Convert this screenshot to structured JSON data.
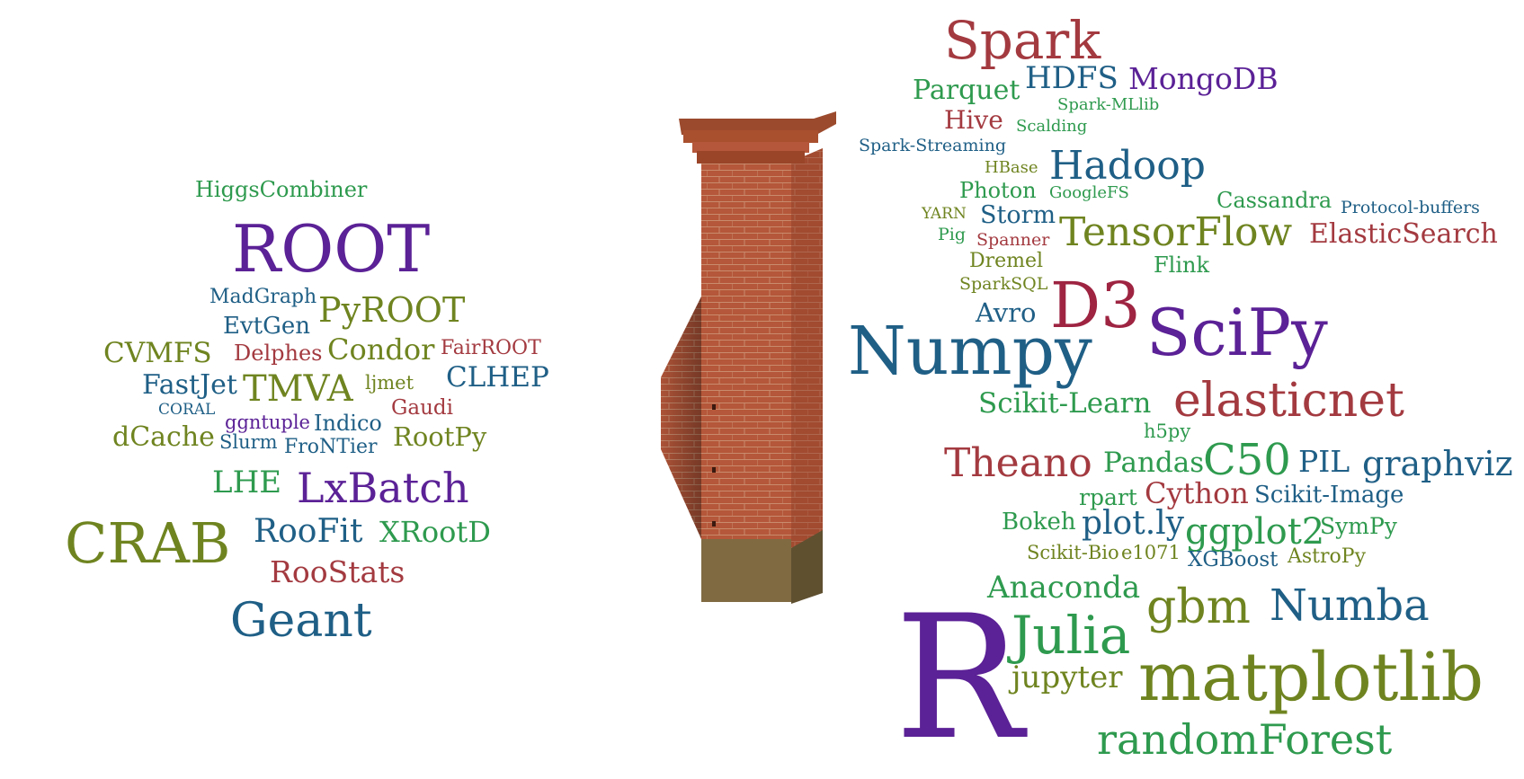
{
  "left_cloud": {
    "words": [
      {
        "text": "HiggsCombiner",
        "color": "green"
      },
      {
        "text": "ROOT",
        "color": "purple"
      },
      {
        "text": "MadGraph",
        "color": "blue"
      },
      {
        "text": "PyROOT",
        "color": "olive"
      },
      {
        "text": "EvtGen",
        "color": "blue"
      },
      {
        "text": "CVMFS",
        "color": "olive"
      },
      {
        "text": "Delphes",
        "color": "red"
      },
      {
        "text": "Condor",
        "color": "olive"
      },
      {
        "text": "FairROOT",
        "color": "red"
      },
      {
        "text": "FastJet",
        "color": "blue"
      },
      {
        "text": "TMVA",
        "color": "olive"
      },
      {
        "text": "ljmet",
        "color": "olive"
      },
      {
        "text": "CLHEP",
        "color": "blue"
      },
      {
        "text": "CORAL",
        "color": "blue"
      },
      {
        "text": "Gaudi",
        "color": "red"
      },
      {
        "text": "ggntuple",
        "color": "purple"
      },
      {
        "text": "Indico",
        "color": "blue"
      },
      {
        "text": "dCache",
        "color": "olive"
      },
      {
        "text": "Slurm",
        "color": "blue"
      },
      {
        "text": "RootPy",
        "color": "olive"
      },
      {
        "text": "FroNTier",
        "color": "blue"
      },
      {
        "text": "LHE",
        "color": "green"
      },
      {
        "text": "LxBatch",
        "color": "purple"
      },
      {
        "text": "CRAB",
        "color": "olive"
      },
      {
        "text": "RooFit",
        "color": "blue"
      },
      {
        "text": "XRootD",
        "color": "green"
      },
      {
        "text": "RooStats",
        "color": "red"
      },
      {
        "text": "Geant",
        "color": "blue"
      }
    ]
  },
  "right_cloud": {
    "words": [
      {
        "text": "Spark",
        "color": "red"
      },
      {
        "text": "Parquet",
        "color": "green"
      },
      {
        "text": "HDFS",
        "color": "blue"
      },
      {
        "text": "MongoDB",
        "color": "purple"
      },
      {
        "text": "Spark-MLlib",
        "color": "green"
      },
      {
        "text": "Hive",
        "color": "red"
      },
      {
        "text": "Scalding",
        "color": "green"
      },
      {
        "text": "Spark-Streaming",
        "color": "blue"
      },
      {
        "text": "Hadoop",
        "color": "blue"
      },
      {
        "text": "HBase",
        "color": "olive"
      },
      {
        "text": "Photon",
        "color": "green"
      },
      {
        "text": "GoogleFS",
        "color": "green"
      },
      {
        "text": "Cassandra",
        "color": "green"
      },
      {
        "text": "Protocol-buffers",
        "color": "blue"
      },
      {
        "text": "YARN",
        "color": "olive"
      },
      {
        "text": "Storm",
        "color": "blue"
      },
      {
        "text": "Pig",
        "color": "green"
      },
      {
        "text": "Spanner",
        "color": "red"
      },
      {
        "text": "TensorFlow",
        "color": "olive"
      },
      {
        "text": "ElasticSearch",
        "color": "red"
      },
      {
        "text": "Dremel",
        "color": "olive"
      },
      {
        "text": "Flink",
        "color": "green"
      },
      {
        "text": "SparkSQL",
        "color": "olive"
      },
      {
        "text": "Avro",
        "color": "blue"
      },
      {
        "text": "D3",
        "color": "crimson"
      },
      {
        "text": "Numpy",
        "color": "blue"
      },
      {
        "text": "SciPy",
        "color": "purple"
      },
      {
        "text": "Scikit-Learn",
        "color": "green"
      },
      {
        "text": "elasticnet",
        "color": "red"
      },
      {
        "text": "h5py",
        "color": "green"
      },
      {
        "text": "Theano",
        "color": "red"
      },
      {
        "text": "Pandas",
        "color": "green"
      },
      {
        "text": "C50",
        "color": "green"
      },
      {
        "text": "PIL",
        "color": "blue"
      },
      {
        "text": "graphviz",
        "color": "blue"
      },
      {
        "text": "rpart",
        "color": "green"
      },
      {
        "text": "Cython",
        "color": "red"
      },
      {
        "text": "Scikit-Image",
        "color": "blue"
      },
      {
        "text": "Bokeh",
        "color": "green"
      },
      {
        "text": "plot.ly",
        "color": "blue"
      },
      {
        "text": "ggplot2",
        "color": "green"
      },
      {
        "text": "SymPy",
        "color": "green"
      },
      {
        "text": "Scikit-Bio",
        "color": "olive"
      },
      {
        "text": "e1071",
        "color": "olive"
      },
      {
        "text": "XGBoost",
        "color": "blue"
      },
      {
        "text": "AstroPy",
        "color": "olive"
      },
      {
        "text": "Anaconda",
        "color": "green"
      },
      {
        "text": "gbm",
        "color": "olive"
      },
      {
        "text": "Numba",
        "color": "blue"
      },
      {
        "text": "R",
        "color": "purple"
      },
      {
        "text": "Julia",
        "color": "green"
      },
      {
        "text": "jupyter",
        "color": "olive"
      },
      {
        "text": "matplotlib",
        "color": "olive"
      },
      {
        "text": "randomForest",
        "color": "green"
      }
    ]
  },
  "palette": {
    "green": "#2e9a4e",
    "purple": "#5b2196",
    "blue": "#1f5f86",
    "olive": "#6f8420",
    "red": "#a33a40",
    "crimson": "#9e2442",
    "brick": "#b5573a",
    "brick_dark": "#8a3c26",
    "mortar": "#c98b6d",
    "moss": "#6f6a3a"
  },
  "wall": {
    "icon": "brick-wall-pillar"
  }
}
